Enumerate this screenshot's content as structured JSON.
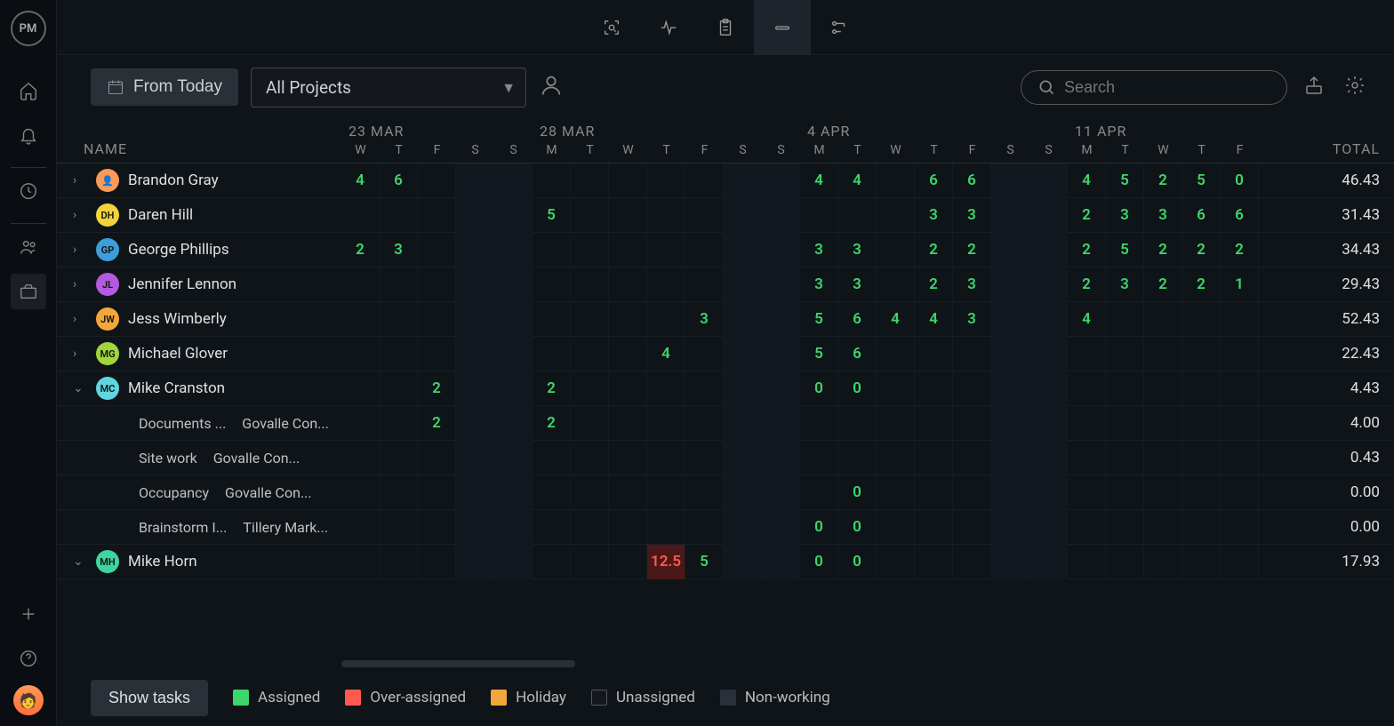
{
  "app": {
    "logo": "PM"
  },
  "sidebar_icons": [
    "home",
    "bell",
    "clock",
    "users",
    "briefcase",
    "plus",
    "help",
    "avatar"
  ],
  "topbar_icons": [
    "scan",
    "activity",
    "clipboard",
    "minus",
    "flow"
  ],
  "topbar_active": "minus",
  "toolbar": {
    "from_today": "From Today",
    "project_select": "All Projects",
    "search_placeholder": "Search"
  },
  "header": {
    "name": "NAME",
    "total": "TOTAL"
  },
  "weeks": [
    {
      "label": "23 MAR",
      "days": [
        "W",
        "T",
        "F",
        "S",
        "S"
      ]
    },
    {
      "label": "28 MAR",
      "days": [
        "M",
        "T",
        "W",
        "T",
        "F",
        "S",
        "S"
      ]
    },
    {
      "label": "4 APR",
      "days": [
        "M",
        "T",
        "W",
        "T",
        "F",
        "S",
        "S"
      ]
    },
    {
      "label": "11 APR",
      "days": [
        "M",
        "T",
        "W",
        "T",
        "F"
      ]
    }
  ],
  "day_count": 24,
  "weekend_indices": [
    3,
    4,
    10,
    11,
    17,
    18
  ],
  "rows": [
    {
      "type": "person",
      "expanded": false,
      "name": "Brandon Gray",
      "avatar_color": "#ff9a56",
      "avatar_text": "👤",
      "total": "46.43",
      "cells": [
        {
          "i": 0,
          "v": "4"
        },
        {
          "i": 1,
          "v": "6"
        },
        {
          "i": 12,
          "v": "4"
        },
        {
          "i": 13,
          "v": "4"
        },
        {
          "i": 15,
          "v": "6"
        },
        {
          "i": 16,
          "v": "6"
        },
        {
          "i": 19,
          "v": "4"
        },
        {
          "i": 20,
          "v": "5"
        },
        {
          "i": 21,
          "v": "2"
        },
        {
          "i": 22,
          "v": "5"
        },
        {
          "i": 23,
          "v": "0"
        }
      ]
    },
    {
      "type": "person",
      "expanded": false,
      "name": "Daren Hill",
      "avatar_color": "#f2d43a",
      "avatar_text": "DH",
      "total": "31.43",
      "cells": [
        {
          "i": 5,
          "v": "5"
        },
        {
          "i": 15,
          "v": "3"
        },
        {
          "i": 16,
          "v": "3"
        },
        {
          "i": 19,
          "v": "2"
        },
        {
          "i": 20,
          "v": "3"
        },
        {
          "i": 21,
          "v": "3"
        },
        {
          "i": 22,
          "v": "6"
        },
        {
          "i": 23,
          "v": "6"
        }
      ]
    },
    {
      "type": "person",
      "expanded": false,
      "name": "George Phillips",
      "avatar_color": "#3a9fdb",
      "avatar_text": "GP",
      "total": "34.43",
      "cells": [
        {
          "i": 0,
          "v": "2"
        },
        {
          "i": 1,
          "v": "3"
        },
        {
          "i": 12,
          "v": "3"
        },
        {
          "i": 13,
          "v": "3"
        },
        {
          "i": 15,
          "v": "2"
        },
        {
          "i": 16,
          "v": "2"
        },
        {
          "i": 19,
          "v": "2"
        },
        {
          "i": 20,
          "v": "5"
        },
        {
          "i": 21,
          "v": "2"
        },
        {
          "i": 22,
          "v": "2"
        },
        {
          "i": 23,
          "v": "2"
        }
      ]
    },
    {
      "type": "person",
      "expanded": false,
      "name": "Jennifer Lennon",
      "avatar_color": "#b25ae0",
      "avatar_text": "JL",
      "total": "29.43",
      "cells": [
        {
          "i": 12,
          "v": "3"
        },
        {
          "i": 13,
          "v": "3"
        },
        {
          "i": 15,
          "v": "2"
        },
        {
          "i": 16,
          "v": "3"
        },
        {
          "i": 19,
          "v": "2"
        },
        {
          "i": 20,
          "v": "3"
        },
        {
          "i": 21,
          "v": "2"
        },
        {
          "i": 22,
          "v": "2"
        },
        {
          "i": 23,
          "v": "1"
        }
      ]
    },
    {
      "type": "person",
      "expanded": false,
      "name": "Jess Wimberly",
      "avatar_color": "#f2a73a",
      "avatar_text": "JW",
      "total": "52.43",
      "cells": [
        {
          "i": 9,
          "v": "3"
        },
        {
          "i": 12,
          "v": "5"
        },
        {
          "i": 13,
          "v": "6"
        },
        {
          "i": 14,
          "v": "4"
        },
        {
          "i": 15,
          "v": "4"
        },
        {
          "i": 16,
          "v": "3"
        },
        {
          "i": 19,
          "v": "4"
        }
      ]
    },
    {
      "type": "person",
      "expanded": false,
      "name": "Michael Glover",
      "avatar_color": "#9fd63a",
      "avatar_text": "MG",
      "total": "22.43",
      "cells": [
        {
          "i": 8,
          "v": "4"
        },
        {
          "i": 12,
          "v": "5"
        },
        {
          "i": 13,
          "v": "6"
        }
      ]
    },
    {
      "type": "person",
      "expanded": true,
      "name": "Mike Cranston",
      "avatar_color": "#5ed6e0",
      "avatar_text": "MC",
      "total": "4.43",
      "cells": [
        {
          "i": 2,
          "v": "2"
        },
        {
          "i": 5,
          "v": "2"
        },
        {
          "i": 12,
          "v": "0"
        },
        {
          "i": 13,
          "v": "0"
        }
      ]
    },
    {
      "type": "subtask",
      "name": "Documents ...",
      "project": "Govalle Con...",
      "total": "4.00",
      "cells": [
        {
          "i": 2,
          "v": "2"
        },
        {
          "i": 5,
          "v": "2"
        }
      ]
    },
    {
      "type": "subtask",
      "name": "Site work",
      "project": "Govalle Con...",
      "total": "0.43",
      "cells": []
    },
    {
      "type": "subtask",
      "name": "Occupancy",
      "project": "Govalle Con...",
      "total": "0.00",
      "cells": [
        {
          "i": 13,
          "v": "0"
        }
      ]
    },
    {
      "type": "subtask",
      "name": "Brainstorm I...",
      "project": "Tillery Mark...",
      "total": "0.00",
      "cells": [
        {
          "i": 12,
          "v": "0"
        },
        {
          "i": 13,
          "v": "0"
        }
      ]
    },
    {
      "type": "person",
      "expanded": true,
      "name": "Mike Horn",
      "avatar_color": "#3dd6a1",
      "avatar_text": "MH",
      "total": "17.93",
      "cells": [
        {
          "i": 8,
          "v": "12.5",
          "over": true
        },
        {
          "i": 9,
          "v": "5"
        },
        {
          "i": 12,
          "v": "0"
        },
        {
          "i": 13,
          "v": "0"
        }
      ]
    }
  ],
  "footer": {
    "show_tasks": "Show tasks",
    "legend": [
      {
        "label": "Assigned",
        "color": "#3dd66a"
      },
      {
        "label": "Over-assigned",
        "color": "#ff5a4d"
      },
      {
        "label": "Holiday",
        "color": "#f2a73a"
      },
      {
        "label": "Unassigned",
        "color": "#14181e",
        "border": "#555"
      },
      {
        "label": "Non-working",
        "color": "#2a3038"
      }
    ]
  },
  "colors": {
    "bg": "#0f1419",
    "panel": "#0a0d11",
    "border": "#1a1f26",
    "text": "#d0d0d0",
    "muted": "#888",
    "assigned": "#3dd66a",
    "over_bg": "#4a1818",
    "over_text": "#ff5a4d",
    "weekend": "#131820"
  }
}
